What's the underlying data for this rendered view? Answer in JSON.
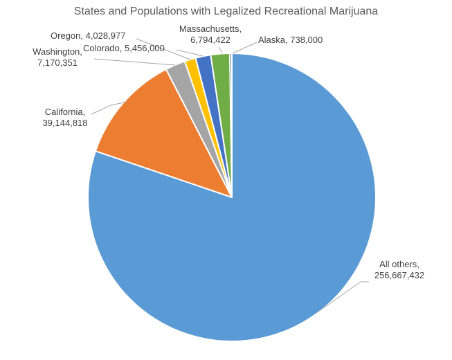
{
  "page": {
    "background": "#ffffff"
  },
  "chart_data": {
    "type": "pie",
    "title": "States and Populations with Legalized Recreational Marijuana",
    "legend": "none",
    "grid": "off",
    "total": 320000000,
    "start_angle_deg": 0,
    "direction": "clockwise",
    "slice_border_color": "#ffffff",
    "leader_line_color": "#a6a6a6",
    "title_color": "#595959",
    "label_color": "#404040",
    "points": [
      {
        "name": "All others",
        "value": 256667432,
        "color": "#5b9bd5",
        "label_line1": "All others,",
        "label_line2": "256,667,432"
      },
      {
        "name": "California",
        "value": 39144818,
        "color": "#ed7d31",
        "label_line1": "California,",
        "label_line2": "39,144,818"
      },
      {
        "name": "Washington",
        "value": 7170351,
        "color": "#a5a5a5",
        "label_line1": "Washington,",
        "label_line2": "7,170,351"
      },
      {
        "name": "Oregon",
        "value": 4028977,
        "color": "#ffc000",
        "label_line1": "Oregon, 4,028,977",
        "label_line2": ""
      },
      {
        "name": "Colorado",
        "value": 5456000,
        "color": "#4472c4",
        "label_line1": "Colorado, 5,456,000",
        "label_line2": ""
      },
      {
        "name": "Massachusetts",
        "value": 6794422,
        "color": "#70ad47",
        "label_line1": "Massachusetts,",
        "label_line2": "6,794,422"
      },
      {
        "name": "Alaska",
        "value": 738000,
        "color": "#41719c",
        "label_line1": "Alaska, 738,000",
        "label_line2": ""
      }
    ]
  }
}
